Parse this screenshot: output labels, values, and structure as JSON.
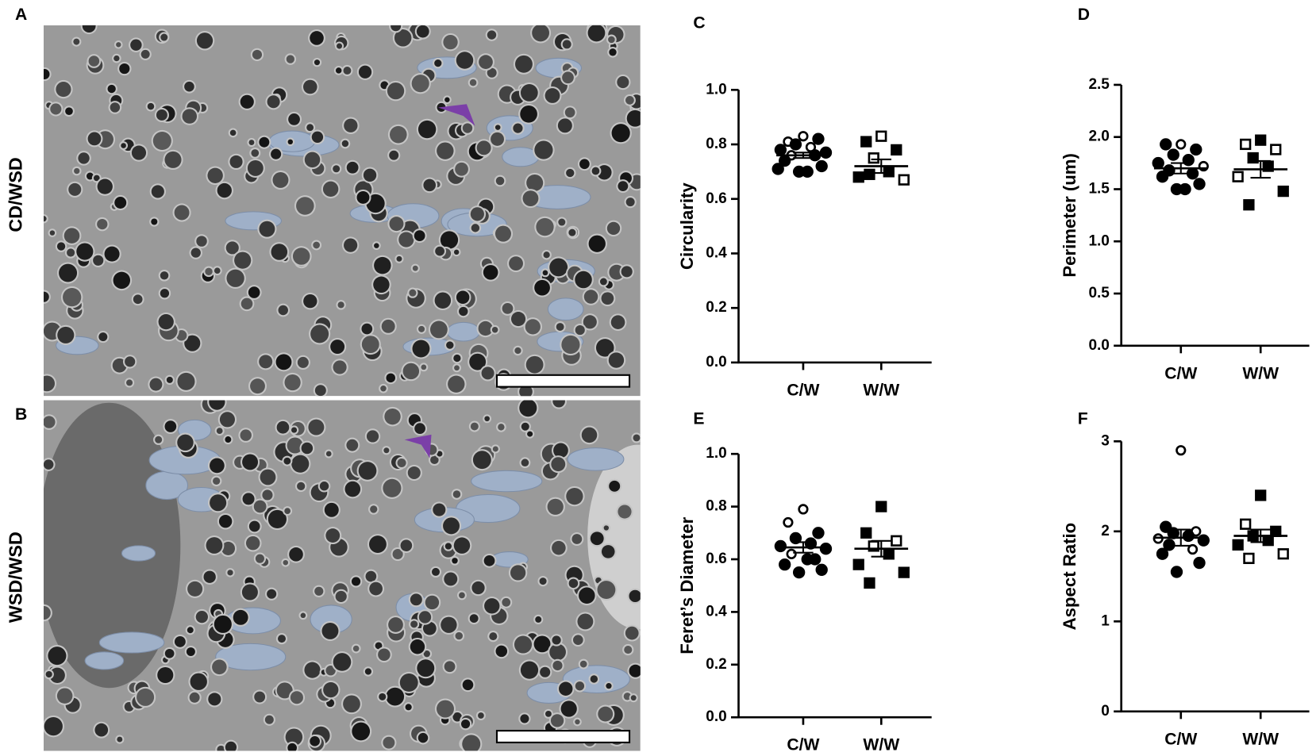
{
  "figure": {
    "panel_labels": [
      "A",
      "B"
    ],
    "row_labels": [
      "CD/WSD",
      "WSD/WSD"
    ]
  },
  "chart_data": [
    {
      "type": "dot",
      "panel_label": "C",
      "y_label": "Circularity",
      "categories": [
        "C/W",
        "W/W"
      ],
      "ylim": [
        0,
        1
      ],
      "yticks": [
        {
          "value": 0,
          "label": "0.0"
        },
        0.2,
        0.4,
        0.6,
        0.8,
        {
          "value": 1,
          "label": "1.0"
        }
      ],
      "groups": [
        {
          "values": [
            0.83,
            0.81,
            0.82,
            0.8,
            0.79,
            0.78,
            0.77,
            0.76,
            0.76,
            0.74,
            0.72,
            0.7,
            0.7,
            0.71
          ],
          "hollow": [
            true,
            true,
            false,
            false,
            true,
            false,
            false,
            true,
            false,
            false,
            false,
            false,
            false,
            false
          ],
          "marker": "circle"
        },
        {
          "values": [
            0.83,
            0.81,
            0.78,
            0.75,
            0.7,
            0.68,
            0.67,
            0.69
          ],
          "hollow": [
            true,
            false,
            false,
            true,
            false,
            false,
            true,
            false
          ],
          "marker": "square"
        }
      ],
      "means": [
        0.76,
        0.72
      ],
      "sem": [
        0.01,
        0.025
      ]
    },
    {
      "type": "dot",
      "panel_label": "D",
      "y_label": "Perimeter (um)",
      "categories": [
        "C/W",
        "W/W"
      ],
      "ylim": [
        0,
        2.5
      ],
      "yticks": [
        {
          "value": 0,
          "label": "0.0"
        },
        0.5,
        {
          "value": 1,
          "label": "1.0"
        },
        1.5,
        {
          "value": 2,
          "label": "2.0"
        },
        2.5
      ],
      "groups": [
        {
          "values": [
            1.93,
            1.93,
            1.88,
            1.83,
            1.78,
            1.75,
            1.72,
            1.68,
            1.65,
            1.62,
            1.55,
            1.5,
            1.5
          ],
          "hollow": [
            true,
            false,
            false,
            false,
            false,
            false,
            true,
            false,
            false,
            false,
            false,
            false,
            false
          ],
          "marker": "circle"
        },
        {
          "values": [
            1.97,
            1.93,
            1.88,
            1.8,
            1.72,
            1.62,
            1.48,
            1.35
          ],
          "hollow": [
            false,
            true,
            true,
            false,
            false,
            true,
            false,
            false
          ],
          "marker": "square"
        }
      ],
      "means": [
        1.7,
        1.69
      ],
      "sem": [
        0.05,
        0.08
      ]
    },
    {
      "type": "dot",
      "panel_label": "E",
      "y_label": "Feret’s Diameter",
      "categories": [
        "C/W",
        "W/W"
      ],
      "ylim": [
        0,
        1
      ],
      "yticks": [
        {
          "value": 0,
          "label": "0.0"
        },
        0.2,
        0.4,
        0.6,
        0.8,
        {
          "value": 1,
          "label": "1.0"
        }
      ],
      "groups": [
        {
          "values": [
            0.79,
            0.74,
            0.7,
            0.68,
            0.66,
            0.65,
            0.64,
            0.62,
            0.6,
            0.58,
            0.56,
            0.55,
            0.6
          ],
          "hollow": [
            true,
            true,
            false,
            false,
            false,
            false,
            false,
            true,
            false,
            false,
            false,
            false,
            false
          ],
          "marker": "circle"
        },
        {
          "values": [
            0.8,
            0.7,
            0.67,
            0.65,
            0.62,
            0.58,
            0.55,
            0.51
          ],
          "hollow": [
            false,
            false,
            true,
            true,
            false,
            false,
            false,
            false
          ],
          "marker": "square"
        }
      ],
      "means": [
        0.645,
        0.64
      ],
      "sem": [
        0.02,
        0.03
      ]
    },
    {
      "type": "dot",
      "panel_label": "F",
      "y_label": "Aspect Ratio",
      "categories": [
        "C/W",
        "W/W"
      ],
      "ylim": [
        0,
        3
      ],
      "yticks": [
        0,
        1,
        2,
        3
      ],
      "groups": [
        {
          "values": [
            2.9,
            2.05,
            2.0,
            1.98,
            1.95,
            1.92,
            1.9,
            1.85,
            1.8,
            1.75,
            1.65,
            1.55
          ],
          "hollow": [
            true,
            false,
            true,
            false,
            false,
            true,
            false,
            false,
            true,
            false,
            false,
            false
          ],
          "marker": "circle"
        },
        {
          "values": [
            2.4,
            2.08,
            2.0,
            1.95,
            1.9,
            1.85,
            1.75,
            1.7
          ],
          "hollow": [
            false,
            true,
            false,
            false,
            false,
            false,
            true,
            true
          ],
          "marker": "square"
        }
      ],
      "means": [
        1.93,
        1.95
      ],
      "sem": [
        0.09,
        0.07
      ]
    }
  ]
}
